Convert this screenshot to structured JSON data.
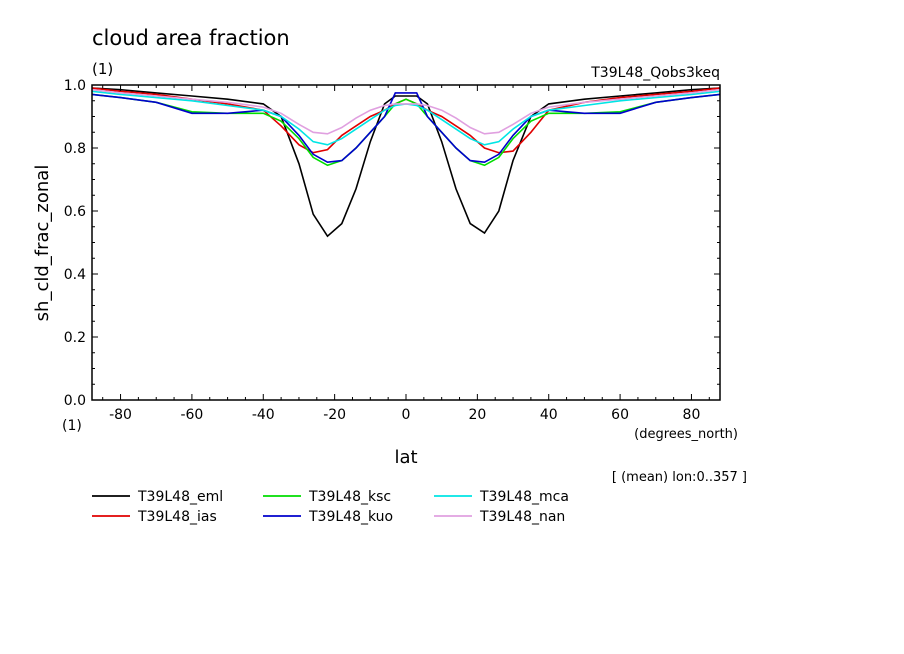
{
  "chart_data": {
    "type": "line",
    "title": "cloud area fraction",
    "subtitle_units": "(1)",
    "run_label": "T39L48_Qobs3keq",
    "xlabel": "lat",
    "xunits": "(degrees_north)",
    "ylabel": "sh_cld_frac_zonal",
    "yunits": "(1)",
    "footnote": "[ (mean) lon:0..357 ]",
    "xlim": [
      -88,
      88
    ],
    "ylim": [
      0.0,
      1.0
    ],
    "xticks": [
      -80,
      -60,
      -40,
      -20,
      0,
      20,
      40,
      60,
      80
    ],
    "yticks": [
      "0.0",
      "0.2",
      "0.4",
      "0.6",
      "0.8",
      "1.0"
    ],
    "x": [
      -88,
      -80,
      -70,
      -60,
      -50,
      -40,
      -35,
      -30,
      -26,
      -22,
      -18,
      -14,
      -10,
      -6,
      -3,
      0,
      3,
      6,
      10,
      14,
      18,
      22,
      26,
      30,
      35,
      40,
      50,
      60,
      70,
      80,
      88
    ],
    "series": [
      {
        "name": "T39L48_eml",
        "color": "#000000",
        "values": [
          0.99,
          0.985,
          0.975,
          0.965,
          0.955,
          0.94,
          0.9,
          0.75,
          0.59,
          0.52,
          0.56,
          0.67,
          0.82,
          0.94,
          0.965,
          0.965,
          0.965,
          0.94,
          0.82,
          0.67,
          0.56,
          0.53,
          0.6,
          0.76,
          0.9,
          0.94,
          0.955,
          0.965,
          0.975,
          0.985,
          0.99
        ]
      },
      {
        "name": "T39L48_ias",
        "color": "#e00000",
        "values": [
          0.99,
          0.98,
          0.97,
          0.955,
          0.94,
          0.92,
          0.87,
          0.81,
          0.785,
          0.795,
          0.84,
          0.87,
          0.9,
          0.92,
          0.94,
          0.955,
          0.94,
          0.92,
          0.9,
          0.87,
          0.84,
          0.8,
          0.785,
          0.79,
          0.85,
          0.92,
          0.945,
          0.96,
          0.97,
          0.98,
          0.99
        ]
      },
      {
        "name": "T39L48_ksc",
        "color": "#00dd00",
        "values": [
          0.97,
          0.96,
          0.945,
          0.915,
          0.91,
          0.91,
          0.885,
          0.83,
          0.77,
          0.745,
          0.76,
          0.8,
          0.85,
          0.9,
          0.94,
          0.955,
          0.94,
          0.9,
          0.85,
          0.8,
          0.76,
          0.745,
          0.77,
          0.83,
          0.885,
          0.91,
          0.91,
          0.915,
          0.945,
          0.96,
          0.97
        ]
      },
      {
        "name": "T39L48_kuo",
        "color": "#0000cc",
        "values": [
          0.97,
          0.96,
          0.945,
          0.91,
          0.91,
          0.92,
          0.9,
          0.84,
          0.78,
          0.755,
          0.76,
          0.8,
          0.85,
          0.9,
          0.975,
          0.975,
          0.975,
          0.9,
          0.85,
          0.8,
          0.76,
          0.755,
          0.78,
          0.84,
          0.9,
          0.92,
          0.91,
          0.91,
          0.945,
          0.96,
          0.97
        ]
      },
      {
        "name": "T39L48_mca",
        "color": "#00e5e5",
        "values": [
          0.98,
          0.97,
          0.96,
          0.95,
          0.935,
          0.92,
          0.9,
          0.86,
          0.82,
          0.81,
          0.83,
          0.86,
          0.89,
          0.92,
          0.935,
          0.94,
          0.935,
          0.92,
          0.89,
          0.86,
          0.83,
          0.81,
          0.82,
          0.86,
          0.9,
          0.92,
          0.935,
          0.95,
          0.96,
          0.97,
          0.98
        ]
      },
      {
        "name": "T39L48_nan",
        "color": "#e0a0e0",
        "values": [
          0.985,
          0.975,
          0.965,
          0.955,
          0.945,
          0.93,
          0.91,
          0.875,
          0.85,
          0.845,
          0.865,
          0.895,
          0.92,
          0.935,
          0.94,
          0.94,
          0.94,
          0.935,
          0.92,
          0.895,
          0.865,
          0.845,
          0.85,
          0.875,
          0.91,
          0.93,
          0.945,
          0.955,
          0.965,
          0.975,
          0.985
        ]
      }
    ],
    "grid": false,
    "legend_position": "bottom-left"
  }
}
